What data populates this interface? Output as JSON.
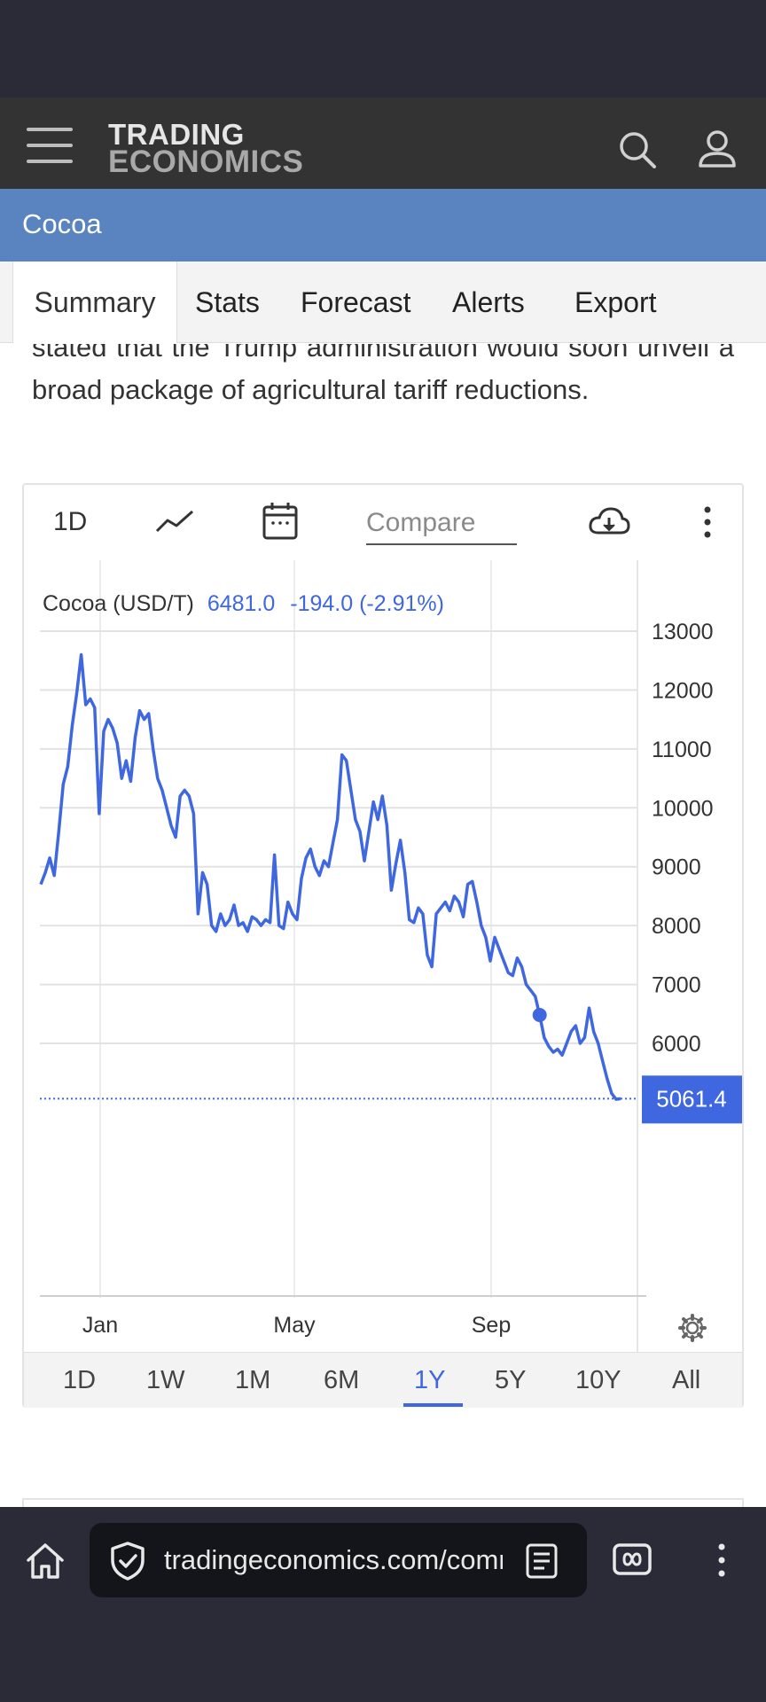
{
  "header": {
    "logo_line1": "TRADING",
    "logo_line2": "ECONOMICS",
    "icons": [
      "menu-icon",
      "search-icon",
      "user-icon"
    ]
  },
  "page": {
    "title": "Cocoa"
  },
  "tabs": [
    {
      "label": "Summary",
      "active": true
    },
    {
      "label": "Stats",
      "active": false
    },
    {
      "label": "Forecast",
      "active": false
    },
    {
      "label": "Alerts",
      "active": false
    },
    {
      "label": "Export",
      "active": false
    }
  ],
  "article": {
    "text": "stated that the Trump administration would soon unveil a broad package of agricultural tariff reductions."
  },
  "chart_controls": {
    "interval": "1D",
    "compare_placeholder": "Compare",
    "icons": [
      "line-chart-icon",
      "calendar-icon",
      "download-icon",
      "more-vertical-icon"
    ]
  },
  "chart_data": {
    "type": "line",
    "title": "Cocoa (USD/T)",
    "legend_value": "6481.0",
    "legend_change": "-194.0 (-2.91%)",
    "last_value_label": "5061.4",
    "marker_value": 6481,
    "ylim": [
      4000,
      13500
    ],
    "y_ticks": [
      13000,
      12000,
      11000,
      10000,
      9000,
      8000,
      7000,
      6000
    ],
    "x_tick_labels": [
      "Jan",
      "May",
      "Sep"
    ],
    "grid": true,
    "line_color": "#3f67e0",
    "series": [
      {
        "values": [
          8700,
          8900,
          9150,
          8850,
          9600,
          10400,
          10700,
          11400,
          11950,
          12600,
          11750,
          11850,
          11700,
          9900,
          11300,
          11500,
          11350,
          11100,
          10500,
          10800,
          10450,
          11200,
          11650,
          11500,
          11600,
          11000,
          10500,
          10300,
          10000,
          9700,
          9500,
          10200,
          10300,
          10200,
          9900,
          8200,
          8900,
          8700,
          8000,
          7900,
          8200,
          8000,
          8100,
          8350,
          8000,
          8050,
          7900,
          8150,
          8100,
          8000,
          8100,
          8050,
          9200,
          8000,
          7950,
          8400,
          8200,
          8100,
          8800,
          9150,
          9300,
          9000,
          8850,
          9100,
          9000,
          9400,
          9800,
          10900,
          10800,
          10300,
          9800,
          9600,
          9100,
          9600,
          10100,
          9800,
          10200,
          9700,
          8600,
          9050,
          9450,
          8900,
          8100,
          8050,
          8300,
          8200,
          7500,
          7300,
          8200,
          8300,
          8400,
          8250,
          8500,
          8400,
          8150,
          8700,
          8750,
          8400,
          8000,
          7800,
          7400,
          7800,
          7600,
          7400,
          7200,
          7150,
          7450,
          7300,
          7000,
          6900,
          6800,
          6481,
          6100,
          5950,
          5850,
          5900,
          5800,
          6000,
          6200,
          6300,
          6000,
          6100,
          6600,
          6200,
          6000,
          5700,
          5400,
          5150,
          5050,
          5061
        ]
      }
    ],
    "range_buttons": [
      "1D",
      "1W",
      "1M",
      "6M",
      "1Y",
      "5Y",
      "10Y",
      "All"
    ],
    "active_range": "1Y"
  },
  "browser": {
    "url": "tradingeconomics.com/commodity/cocoa",
    "icons": [
      "home-icon",
      "shield-check-icon",
      "reader-mode-icon",
      "tabs-icon",
      "more-vertical-icon"
    ]
  }
}
